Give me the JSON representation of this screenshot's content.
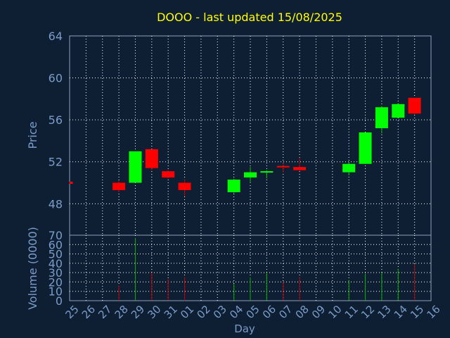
{
  "chart_data": {
    "type": "candlestick",
    "title": "DOOO - last updated 15/08/2025",
    "xlabel": "Day",
    "price_panel": {
      "ylabel": "Price",
      "ylim": [
        45,
        64
      ],
      "yticks": [
        48,
        52,
        56,
        60,
        64
      ]
    },
    "volume_panel": {
      "ylabel": "Volume (0000)",
      "ylim": [
        0,
        70
      ],
      "yticks": [
        0,
        10,
        20,
        30,
        40,
        50,
        60,
        70
      ]
    },
    "categories": [
      "25",
      "26",
      "27",
      "28",
      "29",
      "30",
      "31",
      "01",
      "02",
      "03",
      "04",
      "05",
      "06",
      "07",
      "08",
      "09",
      "10",
      "11",
      "12",
      "13",
      "14",
      "15",
      "16"
    ],
    "candles": [
      {
        "day": "25",
        "open": 50.1,
        "close": 49.9,
        "high": 50.1,
        "low": 49.9,
        "volume": 0
      },
      {
        "day": "28",
        "open": 50.0,
        "close": 49.3,
        "high": 50.2,
        "low": 49.1,
        "volume": 16
      },
      {
        "day": "29",
        "open": 50.0,
        "close": 53.0,
        "high": 53.0,
        "low": 50.0,
        "volume": 67
      },
      {
        "day": "30",
        "open": 53.2,
        "close": 51.4,
        "high": 53.2,
        "low": 51.2,
        "volume": 30
      },
      {
        "day": "31",
        "open": 51.1,
        "close": 50.5,
        "high": 51.2,
        "low": 50.4,
        "volume": 23
      },
      {
        "day": "01",
        "open": 50.0,
        "close": 49.3,
        "high": 50.3,
        "low": 48.7,
        "volume": 25
      },
      {
        "day": "04",
        "open": 49.1,
        "close": 50.3,
        "high": 50.4,
        "low": 49.0,
        "volume": 18
      },
      {
        "day": "05",
        "open": 50.5,
        "close": 51.0,
        "high": 51.5,
        "low": 50.0,
        "volume": 25
      },
      {
        "day": "06",
        "open": 51.0,
        "close": 51.1,
        "high": 51.2,
        "low": 50.4,
        "volume": 30
      },
      {
        "day": "07",
        "open": 51.6,
        "close": 51.5,
        "high": 51.9,
        "low": 51.0,
        "volume": 20
      },
      {
        "day": "08",
        "open": 51.5,
        "close": 51.2,
        "high": 52.4,
        "low": 51.1,
        "volume": 25
      },
      {
        "day": "11",
        "open": 51.0,
        "close": 51.8,
        "high": 52.0,
        "low": 50.7,
        "volume": 22
      },
      {
        "day": "12",
        "open": 51.8,
        "close": 54.8,
        "high": 54.8,
        "low": 51.8,
        "volume": 29
      },
      {
        "day": "13",
        "open": 55.2,
        "close": 57.2,
        "high": 57.3,
        "low": 54.7,
        "volume": 30
      },
      {
        "day": "14",
        "open": 56.2,
        "close": 57.5,
        "high": 57.6,
        "low": 56.2,
        "volume": 34
      },
      {
        "day": "15",
        "open": 58.1,
        "close": 56.6,
        "high": 58.1,
        "low": 56.5,
        "volume": 39
      }
    ],
    "colors": {
      "up": "#00ff00",
      "down": "#ff0000",
      "grid": "#ffffff",
      "axis": "#8fa0b8",
      "label": "#7a9cc8",
      "title": "#ffff00",
      "background": "#0f1f33"
    }
  }
}
